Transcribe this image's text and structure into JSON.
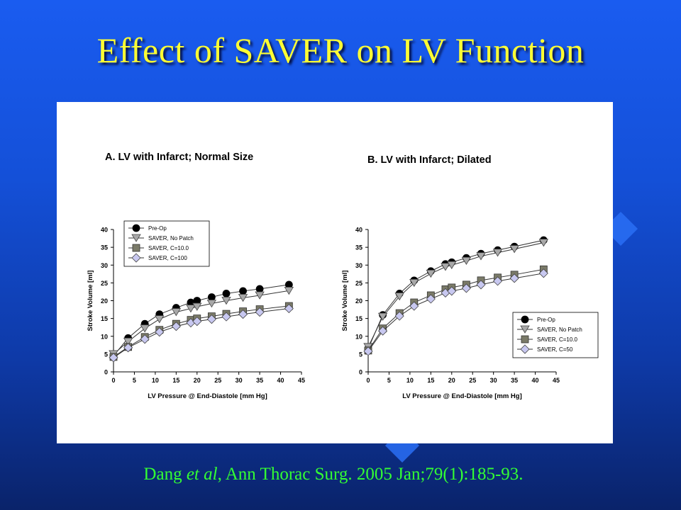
{
  "slide": {
    "title": "Effect of SAVER on LV Function",
    "citation_pre": "Dang ",
    "citation_italic": "et al",
    "citation_post": ", Ann Thorac Surg. 2005 Jan;79(1):185-93.",
    "colors": {
      "title": "#ffff33",
      "citation": "#33ff33",
      "background": "#1450d8"
    }
  },
  "chart_data": [
    {
      "type": "line",
      "title": "A. LV with Infarct; Normal Size",
      "xlabel": "LV Pressure @ End-Diastole [mm Hg]",
      "ylabel": "Stroke Volume [ml]",
      "xlim": [
        0,
        45
      ],
      "ylim": [
        0,
        40
      ],
      "xticks": [
        0,
        5,
        10,
        15,
        20,
        25,
        30,
        35,
        40,
        45
      ],
      "yticks": [
        0,
        5,
        10,
        15,
        20,
        25,
        30,
        35,
        40
      ],
      "grid": false,
      "legend_position": "top-left",
      "series": [
        {
          "name": "Pre-Op",
          "marker": "circle",
          "color": "#000000",
          "x": [
            0,
            3.5,
            7.5,
            11,
            15,
            18.5,
            20,
            23.5,
            27,
            31,
            35,
            42
          ],
          "y": [
            4.5,
            9.5,
            13.5,
            16.2,
            18,
            19.5,
            20,
            21,
            22,
            22.7,
            23.3,
            24.5
          ]
        },
        {
          "name": "SAVER, No Patch",
          "marker": "triangle-down",
          "color": "#a8a8a8",
          "x": [
            0,
            3.5,
            7.5,
            11,
            15,
            18.5,
            20,
            23.5,
            27,
            31,
            35,
            42
          ],
          "y": [
            5,
            8.5,
            12.2,
            14.8,
            16.8,
            17.8,
            18.3,
            19.2,
            20,
            20.8,
            21.5,
            22.8
          ]
        },
        {
          "name": "SAVER, C=10.0",
          "marker": "square",
          "color": "#7a7a68",
          "x": [
            0,
            3.5,
            7.5,
            11,
            15,
            18.5,
            20,
            23.5,
            27,
            31,
            35,
            42
          ],
          "y": [
            4.2,
            7,
            9.8,
            11.8,
            13.5,
            14.6,
            15,
            15.6,
            16.3,
            17,
            17.6,
            18.5
          ]
        },
        {
          "name": "SAVER, C=100",
          "marker": "diamond",
          "color": "#c8c8f0",
          "x": [
            0,
            3.5,
            7.5,
            11,
            15,
            18.5,
            20,
            23.5,
            27,
            31,
            35,
            42
          ],
          "y": [
            4,
            6.8,
            9.2,
            11.2,
            12.8,
            13.8,
            14.2,
            14.8,
            15.5,
            16.2,
            16.8,
            17.8
          ]
        }
      ]
    },
    {
      "type": "line",
      "title": "B. LV with Infarct; Dilated",
      "xlabel": "LV Pressure @ End-Diastole [mm Hg]",
      "ylabel": "Stroke Volume [ml]",
      "xlim": [
        0,
        45
      ],
      "ylim": [
        0,
        40
      ],
      "xticks": [
        0,
        5,
        10,
        15,
        20,
        25,
        30,
        35,
        40,
        45
      ],
      "yticks": [
        0,
        5,
        10,
        15,
        20,
        25,
        30,
        35,
        40
      ],
      "grid": false,
      "legend_position": "bottom-right",
      "series": [
        {
          "name": "Pre-Op",
          "marker": "circle",
          "color": "#000000",
          "x": [
            0,
            3.5,
            7.5,
            11,
            15,
            18.5,
            20,
            23.5,
            27,
            31,
            35,
            42
          ],
          "y": [
            6.5,
            16,
            22,
            25.7,
            28.3,
            30.3,
            30.8,
            32,
            33.2,
            34.2,
            35.2,
            37
          ]
        },
        {
          "name": "SAVER, No Patch",
          "marker": "triangle-down",
          "color": "#a8a8a8",
          "x": [
            0,
            3.5,
            7.5,
            11,
            15,
            18.5,
            20,
            23.5,
            27,
            31,
            35,
            42
          ],
          "y": [
            7,
            15.5,
            21.2,
            25,
            27.6,
            29.5,
            30,
            31.2,
            32.5,
            33.5,
            34.5,
            36.3
          ]
        },
        {
          "name": "SAVER, C=10.0",
          "marker": "square",
          "color": "#7a7a68",
          "x": [
            0,
            3.5,
            7.5,
            11,
            15,
            18.5,
            20,
            23.5,
            27,
            31,
            35,
            42
          ],
          "y": [
            6,
            12.2,
            16.5,
            19.5,
            21.5,
            23.2,
            23.7,
            24.5,
            25.7,
            26.5,
            27.3,
            28.8
          ]
        },
        {
          "name": "SAVER, C=50",
          "marker": "diamond",
          "color": "#c8c8f0",
          "x": [
            0,
            3.5,
            7.5,
            11,
            15,
            18.5,
            20,
            23.5,
            27,
            31,
            35,
            42
          ],
          "y": [
            5.8,
            11.5,
            15.7,
            18.5,
            20.5,
            22.2,
            22.7,
            23.5,
            24.5,
            25.5,
            26.3,
            27.7
          ]
        }
      ]
    }
  ]
}
